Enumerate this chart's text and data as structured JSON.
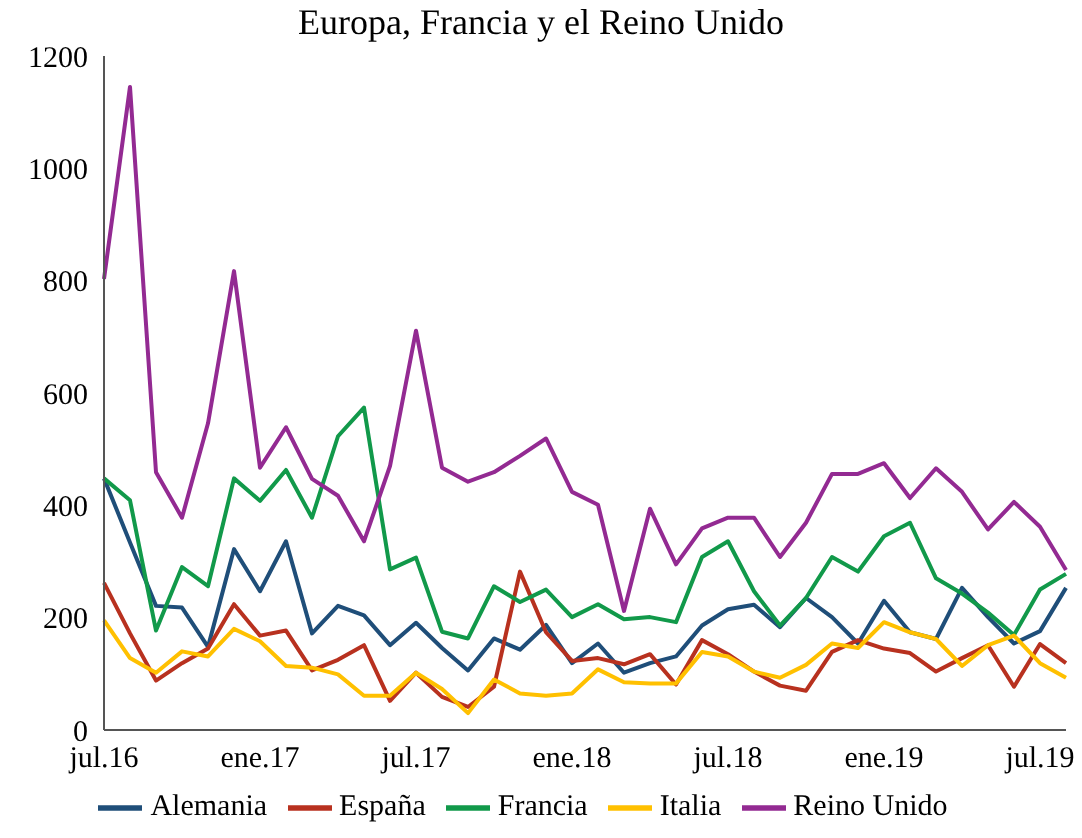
{
  "chart_data": {
    "type": "line",
    "title": "Europa, Francia y el Reino Unido",
    "categories": [
      "jul.16",
      null,
      null,
      null,
      null,
      null,
      "ene.17",
      null,
      null,
      null,
      null,
      null,
      "jul.17",
      null,
      null,
      null,
      null,
      null,
      "ene.18",
      null,
      null,
      null,
      null,
      null,
      "jul.18",
      null,
      null,
      null,
      null,
      null,
      "ene.19",
      null,
      null,
      null,
      null,
      null,
      "jul.19",
      null
    ],
    "series": [
      {
        "name": "Alemania",
        "color": "#1f4e79",
        "values": [
          448,
          334,
          221,
          218,
          148,
          322,
          247,
          336,
          172,
          221,
          204,
          151,
          191,
          146,
          106,
          163,
          143,
          187,
          119,
          154,
          102,
          119,
          131,
          186,
          215,
          223,
          183,
          235,
          201,
          154,
          230,
          174,
          162,
          253,
          201,
          154,
          176,
          253
        ]
      },
      {
        "name": "España",
        "color": "#b8311f",
        "values": [
          262,
          172,
          88,
          119,
          145,
          224,
          168,
          177,
          106,
          125,
          151,
          52,
          102,
          59,
          41,
          77,
          282,
          174,
          123,
          128,
          117,
          135,
          81,
          160,
          135,
          104,
          79,
          70,
          139,
          160,
          145,
          137,
          104,
          128,
          151,
          77,
          153,
          119
        ]
      },
      {
        "name": "Francia",
        "color": "#11994a",
        "values": [
          448,
          409,
          177,
          290,
          256,
          448,
          408,
          463,
          378,
          523,
          574,
          286,
          307,
          175,
          163,
          256,
          228,
          250,
          201,
          224,
          197,
          201,
          192,
          308,
          336,
          247,
          186,
          235,
          308,
          282,
          345,
          369,
          270,
          243,
          209,
          169,
          250,
          278
        ]
      },
      {
        "name": "Italia",
        "color": "#ffc000",
        "values": [
          195,
          128,
          102,
          140,
          131,
          180,
          158,
          114,
          111,
          99,
          61,
          61,
          102,
          73,
          30,
          90,
          65,
          61,
          65,
          108,
          85,
          83,
          83,
          139,
          131,
          104,
          93,
          116,
          154,
          146,
          192,
          174,
          162,
          114,
          151,
          168,
          119,
          93
        ]
      },
      {
        "name": "Reino Unido",
        "color": "#932a92",
        "values": [
          803,
          1145,
          459,
          378,
          546,
          817,
          467,
          539,
          447,
          417,
          336,
          470,
          711,
          467,
          442,
          459,
          488,
          519,
          424,
          401,
          212,
          394,
          295,
          359,
          378,
          378,
          308,
          369,
          456,
          456,
          475,
          413,
          466,
          424,
          357,
          406,
          362,
          285
        ]
      }
    ],
    "ylim": [
      0,
      1200
    ],
    "yticks": [
      0,
      200,
      400,
      600,
      800,
      1000,
      1200
    ],
    "grid": false,
    "legend": "bottom",
    "marker": "none",
    "line_style": "solid"
  }
}
